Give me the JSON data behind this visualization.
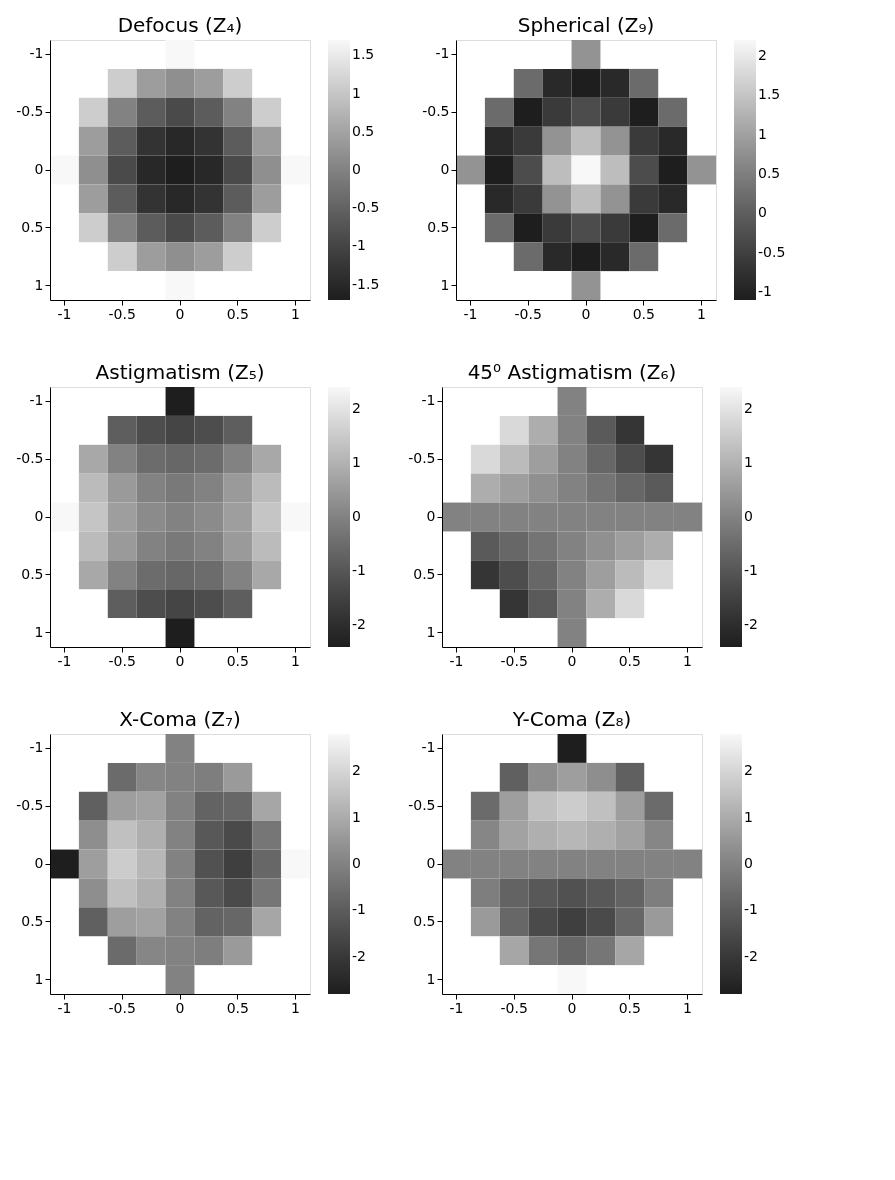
{
  "chart_data": [
    {
      "type": "heatmap",
      "title": "Defocus (Z₄)",
      "categories": [
        "-1",
        null,
        "-0.5",
        null,
        "0",
        null,
        "0.5",
        null,
        "1"
      ],
      "y_categories": [
        "-1",
        null,
        "-0.5",
        null,
        "0",
        null,
        "0.5",
        null,
        "1"
      ],
      "clim": [
        -1.7,
        1.7
      ],
      "cticks": [
        -1.5,
        -1,
        -0.5,
        0,
        0.5,
        1,
        1.5
      ],
      "cells": [
        [
          null,
          null,
          null,
          null,
          1.7,
          null,
          null,
          null,
          null
        ],
        [
          null,
          null,
          1.1,
          0.4,
          0.2,
          0.4,
          1.1,
          null,
          null
        ],
        [
          null,
          1.1,
          0,
          -0.6,
          -0.9,
          -0.6,
          0,
          1.1,
          null
        ],
        [
          null,
          0.4,
          -0.6,
          -1.3,
          -1.5,
          -1.3,
          -0.6,
          0.4,
          null
        ],
        [
          1.7,
          0.2,
          -0.9,
          -1.5,
          -1.7,
          -1.5,
          -0.9,
          0.2,
          1.7
        ],
        [
          null,
          0.4,
          -0.6,
          -1.3,
          -1.5,
          -1.3,
          -0.6,
          0.4,
          null
        ],
        [
          null,
          1.1,
          0,
          -0.6,
          -0.9,
          -0.6,
          0,
          1.1,
          null
        ],
        [
          null,
          null,
          1.1,
          0.4,
          0.2,
          0.4,
          1.1,
          null,
          null
        ],
        [
          null,
          null,
          null,
          null,
          1.7,
          null,
          null,
          null,
          null
        ]
      ]
    },
    {
      "type": "heatmap",
      "title": "Spherical (Z₉)",
      "categories": [
        "-1",
        null,
        "-0.5",
        null,
        "0",
        null,
        "0.5",
        null,
        "1"
      ],
      "y_categories": [
        "-1",
        null,
        "-0.5",
        null,
        "0",
        null,
        "0.5",
        null,
        "1"
      ],
      "clim": [
        -1.1,
        2.2
      ],
      "cticks": [
        -1,
        -0.5,
        0,
        0.5,
        1,
        1.5,
        2
      ],
      "cells": [
        [
          null,
          null,
          null,
          null,
          0.8,
          null,
          null,
          null,
          null
        ],
        [
          null,
          null,
          0.2,
          -0.9,
          -1.1,
          -0.9,
          0.2,
          null,
          null
        ],
        [
          null,
          0.2,
          -1.1,
          -0.6,
          -0.3,
          -0.6,
          -1.1,
          0.2,
          null
        ],
        [
          null,
          -0.9,
          -0.6,
          0.8,
          1.4,
          0.8,
          -0.6,
          -0.9,
          null
        ],
        [
          0.8,
          -1.1,
          -0.3,
          1.4,
          2.2,
          1.4,
          -0.3,
          -1.1,
          0.8
        ],
        [
          null,
          -0.9,
          -0.6,
          0.8,
          1.4,
          0.8,
          -0.6,
          -0.9,
          null
        ],
        [
          null,
          0.2,
          -1.1,
          -0.6,
          -0.3,
          -0.6,
          -1.1,
          0.2,
          null
        ],
        [
          null,
          null,
          0.2,
          -0.9,
          -1.1,
          -0.9,
          0.2,
          null,
          null
        ],
        [
          null,
          null,
          null,
          null,
          0.8,
          null,
          null,
          null,
          null
        ]
      ]
    },
    {
      "type": "heatmap",
      "title": "Astigmatism (Z₅)",
      "categories": [
        "-1",
        null,
        "-0.5",
        null,
        "0",
        null,
        "0.5",
        null,
        "1"
      ],
      "y_categories": [
        "-1",
        null,
        "-0.5",
        null,
        "0",
        null,
        "0.5",
        null,
        "1"
      ],
      "clim": [
        -2.4,
        2.4
      ],
      "cticks": [
        -2,
        -1,
        0,
        1,
        2
      ],
      "cells": [
        [
          null,
          null,
          null,
          null,
          -2.4,
          null,
          null,
          null,
          null
        ],
        [
          null,
          null,
          -0.8,
          -1.2,
          -1.4,
          -1.2,
          -0.8,
          null,
          null
        ],
        [
          null,
          0.8,
          0,
          -0.5,
          -0.6,
          -0.5,
          0,
          0.8,
          null
        ],
        [
          null,
          1.2,
          0.5,
          0,
          -0.2,
          0,
          0.5,
          1.2,
          null
        ],
        [
          2.4,
          1.4,
          0.6,
          0.2,
          0,
          0.2,
          0.6,
          1.4,
          2.4
        ],
        [
          null,
          1.2,
          0.5,
          0,
          -0.2,
          0,
          0.5,
          1.2,
          null
        ],
        [
          null,
          0.8,
          0,
          -0.5,
          -0.6,
          -0.5,
          0,
          0.8,
          null
        ],
        [
          null,
          null,
          -0.8,
          -1.2,
          -1.4,
          -1.2,
          -0.8,
          null,
          null
        ],
        [
          null,
          null,
          null,
          null,
          -2.4,
          null,
          null,
          null,
          null
        ]
      ]
    },
    {
      "type": "heatmap",
      "title": "45⁰ Astigmatism (Z₆)",
      "categories": [
        "-1",
        null,
        "-0.5",
        null,
        "0",
        null,
        "0.5",
        null,
        "1"
      ],
      "y_categories": [
        "-1",
        null,
        "-0.5",
        null,
        "0",
        null,
        "0.5",
        null,
        "1"
      ],
      "clim": [
        -2.4,
        2.4
      ],
      "cticks": [
        -2,
        -1,
        0,
        1,
        2
      ],
      "cells": [
        [
          null,
          null,
          null,
          null,
          0,
          null,
          null,
          null,
          null
        ],
        [
          null,
          null,
          1.8,
          0.9,
          0,
          -0.9,
          -1.8,
          null,
          null
        ],
        [
          null,
          1.8,
          1.2,
          0.6,
          0,
          -0.6,
          -1.2,
          -1.8,
          null
        ],
        [
          null,
          0.9,
          0.6,
          0.3,
          0,
          -0.3,
          -0.6,
          -0.9,
          null
        ],
        [
          0,
          0,
          0,
          0,
          0,
          0,
          0,
          0,
          0
        ],
        [
          null,
          -0.9,
          -0.6,
          -0.3,
          0,
          0.3,
          0.6,
          0.9,
          null
        ],
        [
          null,
          -1.8,
          -1.2,
          -0.6,
          0,
          0.6,
          1.2,
          1.8,
          null
        ],
        [
          null,
          null,
          -1.8,
          -0.9,
          0,
          0.9,
          1.8,
          null,
          null
        ],
        [
          null,
          null,
          null,
          null,
          0,
          null,
          null,
          null,
          null
        ]
      ]
    },
    {
      "type": "heatmap",
      "title": "X-Coma (Z₇)",
      "categories": [
        "-1",
        null,
        "-0.5",
        null,
        "0",
        null,
        "0.5",
        null,
        "1"
      ],
      "y_categories": [
        "-1",
        null,
        "-0.5",
        null,
        "0",
        null,
        "0.5",
        null,
        "1"
      ],
      "clim": [
        -2.8,
        2.8
      ],
      "cticks": [
        -2,
        -1,
        0,
        1,
        2
      ],
      "cells": [
        [
          null,
          null,
          null,
          null,
          0,
          null,
          null,
          null,
          null
        ],
        [
          null,
          null,
          -0.6,
          0.1,
          0,
          -0.1,
          0.6,
          null,
          null
        ],
        [
          null,
          -0.9,
          0.7,
          0.8,
          0,
          -0.8,
          -0.7,
          0.9,
          null
        ],
        [
          null,
          0.3,
          1.5,
          1.1,
          0,
          -1.1,
          -1.5,
          -0.3,
          null
        ],
        [
          -2.8,
          0.7,
          1.8,
          1.3,
          0,
          -1.3,
          -1.8,
          -0.7,
          2.8
        ],
        [
          null,
          0.3,
          1.5,
          1.1,
          0,
          -1.1,
          -1.5,
          -0.3,
          null
        ],
        [
          null,
          -0.9,
          0.7,
          0.8,
          0,
          -0.8,
          -0.7,
          0.9,
          null
        ],
        [
          null,
          null,
          -0.6,
          0.1,
          0,
          -0.1,
          0.6,
          null,
          null
        ],
        [
          null,
          null,
          null,
          null,
          0,
          null,
          null,
          null,
          null
        ]
      ]
    },
    {
      "type": "heatmap",
      "title": "Y-Coma (Z₈)",
      "categories": [
        "-1",
        null,
        "-0.5",
        null,
        "0",
        null,
        "0.5",
        null,
        "1"
      ],
      "y_categories": [
        "-1",
        null,
        "-0.5",
        null,
        "0",
        null,
        "0.5",
        null,
        "1"
      ],
      "clim": [
        -2.8,
        2.8
      ],
      "cticks": [
        -2,
        -1,
        0,
        1,
        2
      ],
      "cells": [
        [
          null,
          null,
          null,
          null,
          -2.8,
          null,
          null,
          null,
          null
        ],
        [
          null,
          null,
          -0.9,
          0.3,
          0.7,
          0.3,
          -0.9,
          null,
          null
        ],
        [
          null,
          -0.6,
          0.7,
          1.5,
          1.8,
          1.5,
          0.7,
          -0.6,
          null
        ],
        [
          null,
          0.1,
          0.8,
          1.1,
          1.3,
          1.1,
          0.8,
          0.1,
          null
        ],
        [
          0,
          0,
          0,
          0,
          0,
          0,
          0,
          0,
          0
        ],
        [
          null,
          -0.1,
          -0.8,
          -1.1,
          -1.3,
          -1.1,
          -0.8,
          -0.1,
          null
        ],
        [
          null,
          0.6,
          -0.7,
          -1.5,
          -1.8,
          -1.5,
          -0.7,
          0.6,
          null
        ],
        [
          null,
          null,
          0.9,
          -0.3,
          -0.7,
          -0.3,
          0.9,
          null,
          null
        ],
        [
          null,
          null,
          null,
          null,
          2.8,
          null,
          null,
          null,
          null
        ]
      ]
    }
  ]
}
